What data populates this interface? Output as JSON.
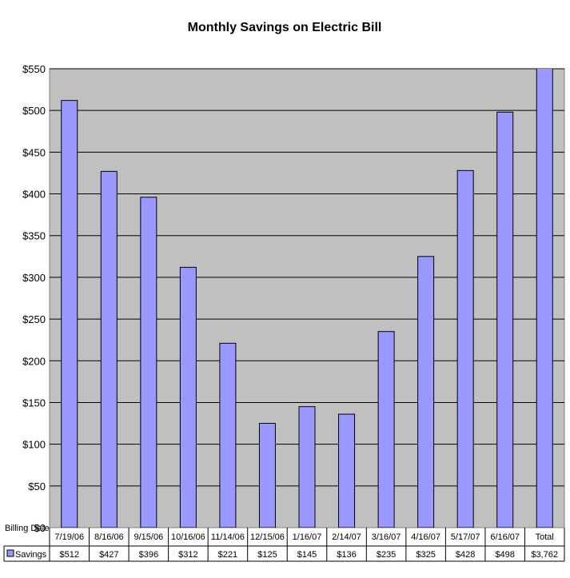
{
  "chart_data": {
    "type": "bar",
    "title": "Monthly Savings on Electric Bill",
    "xlabel": "Billing Date",
    "ylabel": "",
    "ylim": [
      0,
      550
    ],
    "ytick_step": 50,
    "y_tick_prefix": "$",
    "grid": true,
    "legend": "none",
    "data_table": true,
    "plot_background": "#c0c0c0",
    "bar_color": "#9999ff",
    "categories": [
      "7/19/06",
      "8/16/06",
      "9/15/06",
      "10/16/06",
      "11/14/06",
      "12/15/06",
      "1/16/07",
      "2/14/07",
      "3/16/07",
      "4/16/07",
      "5/17/07",
      "6/16/07",
      "Total"
    ],
    "series": [
      {
        "name": "Savings",
        "values": [
          512,
          427,
          396,
          312,
          221,
          125,
          145,
          136,
          235,
          325,
          428,
          498,
          3762
        ],
        "value_labels": [
          "$512",
          "$427",
          "$396",
          "$312",
          "$221",
          "$125",
          "$145",
          "$136",
          "$235",
          "$325",
          "$428",
          "$498",
          "$3,762"
        ]
      }
    ]
  }
}
